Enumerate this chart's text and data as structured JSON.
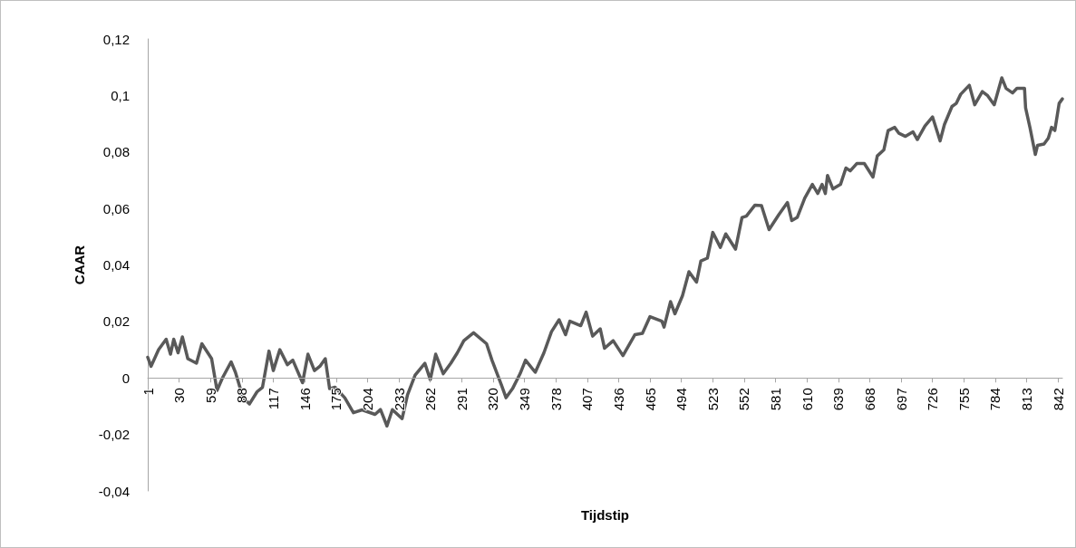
{
  "chart_data": {
    "type": "line",
    "xlabel": "Tijdstip",
    "ylabel": "CAAR",
    "marker": "none",
    "line_style": "solid",
    "xlim": [
      1,
      846
    ],
    "xticks": [
      1,
      30,
      59,
      88,
      117,
      146,
      175,
      204,
      233,
      262,
      291,
      320,
      349,
      378,
      407,
      436,
      465,
      494,
      523,
      552,
      581,
      610,
      639,
      668,
      697,
      726,
      755,
      784,
      813,
      842
    ],
    "ylim": [
      -0.04,
      0.12
    ],
    "yticks": [
      {
        "value": -0.04,
        "label": "-0,04"
      },
      {
        "value": -0.02,
        "label": "-0,02"
      },
      {
        "value": 0,
        "label": "0"
      },
      {
        "value": 0.02,
        "label": "0,02"
      },
      {
        "value": 0.04,
        "label": "0,04"
      },
      {
        "value": 0.06,
        "label": "0,06"
      },
      {
        "value": 0.08,
        "label": "0,08"
      },
      {
        "value": 0.1,
        "label": "0,1"
      },
      {
        "value": 0.12,
        "label": "0,12"
      }
    ],
    "series": [
      {
        "color": "#595959",
        "x": [
          1,
          4,
          11,
          18,
          22,
          25,
          29,
          33,
          38,
          46,
          51,
          60,
          65,
          70,
          78,
          82,
          89,
          95,
          102,
          107,
          113,
          117,
          123,
          130,
          135,
          144,
          149,
          155,
          160,
          165,
          169,
          174,
          183,
          191,
          199,
          211,
          216,
          222,
          227,
          236,
          241,
          248,
          257,
          262,
          267,
          274,
          281,
          287,
          293,
          302,
          314,
          319,
          328,
          332,
          338,
          345,
          350,
          359,
          367,
          374,
          381,
          387,
          391,
          401,
          406,
          412,
          419,
          423,
          431,
          440,
          451,
          458,
          465,
          476,
          478,
          484,
          488,
          495,
          501,
          508,
          512,
          518,
          523,
          530,
          535,
          544,
          550,
          554,
          562,
          568,
          575,
          584,
          592,
          596,
          601,
          608,
          615,
          620,
          624,
          627,
          629,
          634,
          641,
          646,
          650,
          656,
          663,
          671,
          675,
          681,
          685,
          691,
          695,
          701,
          708,
          712,
          719,
          726,
          733,
          737,
          744,
          748,
          752,
          760,
          765,
          772,
          777,
          783,
          790,
          794,
          800,
          804,
          811,
          812,
          816,
          821,
          823,
          829,
          833,
          836,
          839,
          843,
          846
        ],
        "values": [
          0.0073,
          0.0041,
          0.01,
          0.0137,
          0.0084,
          0.0137,
          0.0089,
          0.0145,
          0.0068,
          0.0052,
          0.0121,
          0.0068,
          -0.0044,
          0,
          0.0057,
          0.002,
          -0.007,
          -0.0092,
          -0.0049,
          -0.0033,
          0.0095,
          0.0026,
          0.01,
          0.0047,
          0.0063,
          -0.0017,
          0.0084,
          0.0026,
          0.0041,
          0.0068,
          -0.0038,
          -0.0033,
          -0.007,
          -0.0123,
          -0.0113,
          -0.0129,
          -0.0112,
          -0.017,
          -0.0112,
          -0.0144,
          -0.006,
          0.001,
          0.0052,
          -0.0006,
          0.0084,
          0.0015,
          0.0052,
          0.0089,
          0.0132,
          0.016,
          0.0121,
          0.0063,
          -0.0028,
          -0.007,
          -0.0038,
          0.0015,
          0.0063,
          0.002,
          0.0089,
          0.0164,
          0.0206,
          0.0153,
          0.0201,
          0.0185,
          0.0233,
          0.0148,
          0.0174,
          0.0105,
          0.0132,
          0.0079,
          0.0153,
          0.0158,
          0.0217,
          0.0201,
          0.018,
          0.027,
          0.0227,
          0.0291,
          0.0376,
          0.0339,
          0.0414,
          0.0424,
          0.0515,
          0.0462,
          0.051,
          0.0456,
          0.0568,
          0.0573,
          0.0612,
          0.061,
          0.0525,
          0.0578,
          0.0621,
          0.0557,
          0.0568,
          0.0637,
          0.0685,
          0.0653,
          0.0685,
          0.0653,
          0.0717,
          0.0669,
          0.0685,
          0.0743,
          0.0733,
          0.0759,
          0.0759,
          0.0711,
          0.0786,
          0.0807,
          0.0876,
          0.0887,
          0.0866,
          0.0855,
          0.0871,
          0.0844,
          0.0892,
          0.0924,
          0.0839,
          0.0897,
          0.0961,
          0.0972,
          0.1004,
          0.1036,
          0.0967,
          0.1014,
          0.0999,
          0.0967,
          0.1062,
          0.1025,
          0.1009,
          0.1025,
          0.1025,
          0.0956,
          0.0887,
          0.0791,
          0.0823,
          0.0828,
          0.0849,
          0.0887,
          0.0876,
          0.0972,
          0.0988
        ]
      }
    ]
  }
}
